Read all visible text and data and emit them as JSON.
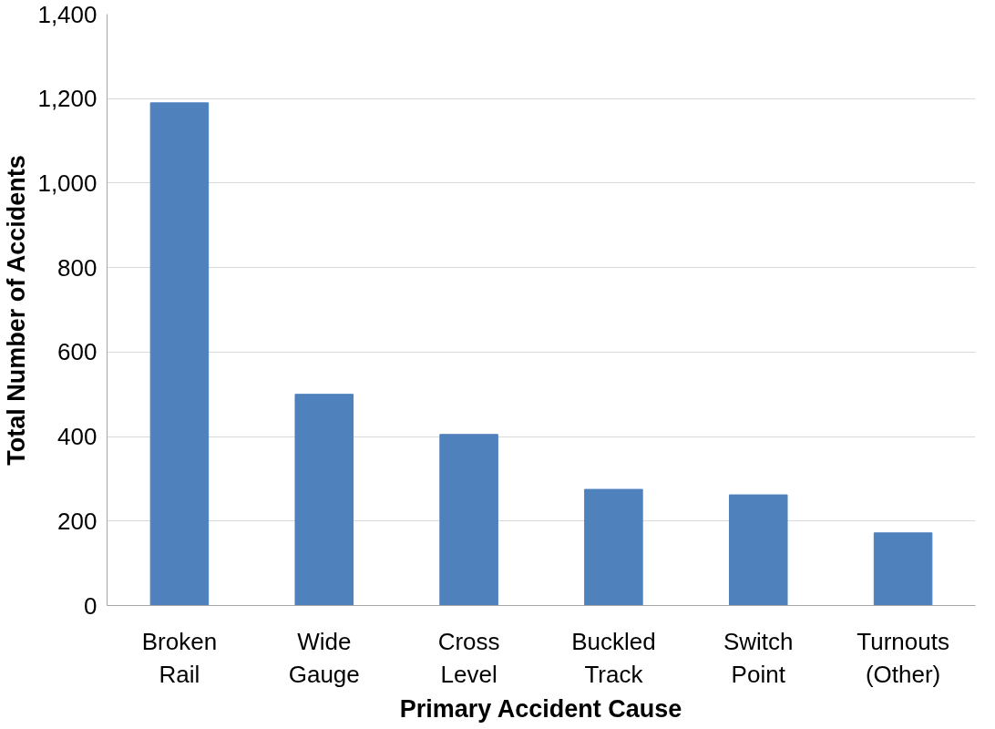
{
  "chart_data": {
    "type": "bar",
    "xlabel": "Primary Accident Cause",
    "ylabel": "Total Number of Accidents",
    "categories": [
      "Broken\nRail",
      "Wide\nGauge",
      "Cross\nLevel",
      "Buckled\nTrack",
      "Switch\nPoint",
      "Turnouts\n(Other)"
    ],
    "values": [
      1190,
      500,
      405,
      275,
      262,
      172
    ],
    "color": "#4f81bd",
    "ylim": [
      0,
      1400
    ],
    "yticks": [
      {
        "value": 0,
        "label": "0"
      },
      {
        "value": 200,
        "label": "200"
      },
      {
        "value": 400,
        "label": "400"
      },
      {
        "value": 600,
        "label": "600"
      },
      {
        "value": 800,
        "label": "800"
      },
      {
        "value": 1000,
        "label": "1,000"
      },
      {
        "value": 1200,
        "label": "1,200"
      },
      {
        "value": 1400,
        "label": "1,400"
      }
    ],
    "grid": "y"
  }
}
